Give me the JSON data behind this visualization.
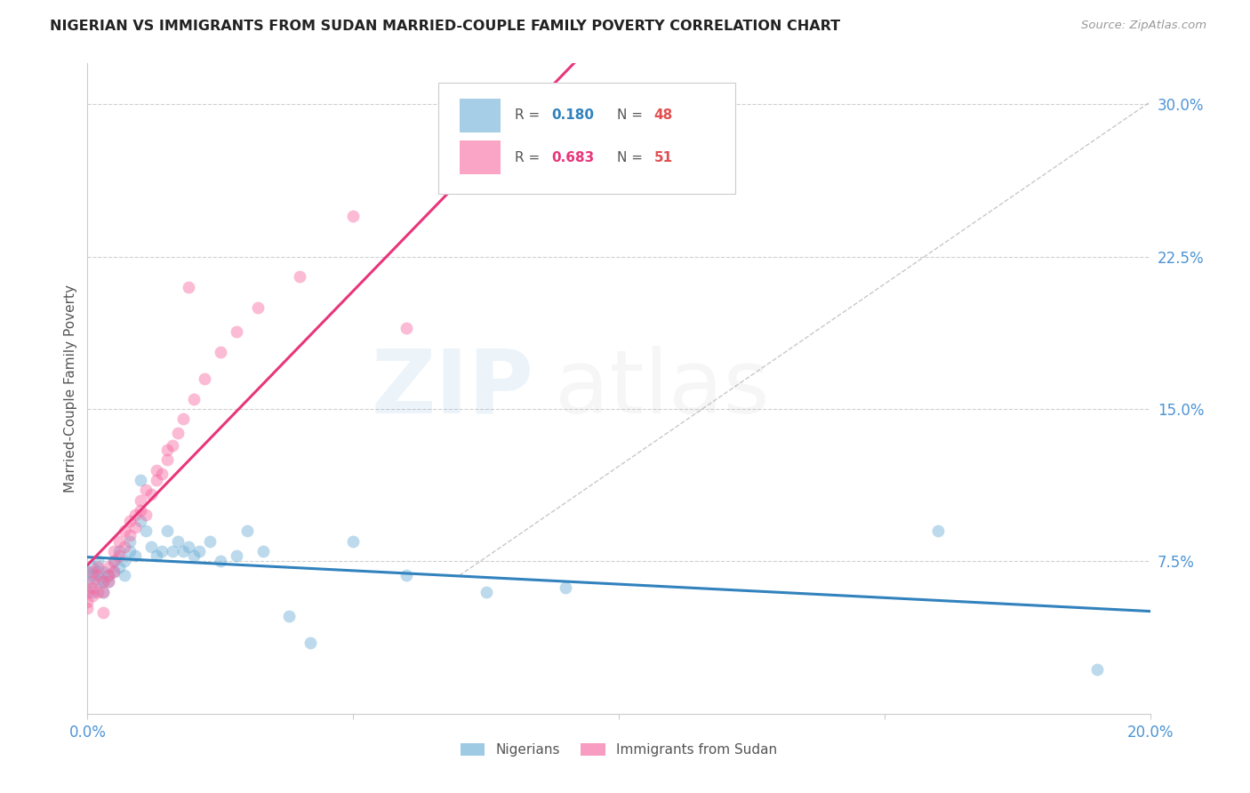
{
  "title": "NIGERIAN VS IMMIGRANTS FROM SUDAN MARRIED-COUPLE FAMILY POVERTY CORRELATION CHART",
  "source": "Source: ZipAtlas.com",
  "ylabel": "Married-Couple Family Poverty",
  "xlim": [
    0.0,
    0.2
  ],
  "ylim": [
    0.0,
    0.32
  ],
  "yticks": [
    0.075,
    0.15,
    0.225,
    0.3
  ],
  "ytick_labels": [
    "7.5%",
    "15.0%",
    "22.5%",
    "30.0%"
  ],
  "R_nigerian": 0.18,
  "N_nigerian": 48,
  "R_sudan": 0.683,
  "N_sudan": 51,
  "blue_color": "#6baed6",
  "pink_color": "#f768a1",
  "blue_line": "#3182bd",
  "pink_line": "#e8367a",
  "scatter_alpha": 0.45,
  "scatter_size": 100,
  "nigerian_x": [
    0.0,
    0.0,
    0.001,
    0.001,
    0.001,
    0.002,
    0.002,
    0.002,
    0.003,
    0.003,
    0.003,
    0.004,
    0.004,
    0.005,
    0.005,
    0.006,
    0.006,
    0.007,
    0.007,
    0.008,
    0.008,
    0.009,
    0.01,
    0.01,
    0.011,
    0.012,
    0.013,
    0.014,
    0.015,
    0.016,
    0.017,
    0.018,
    0.019,
    0.02,
    0.021,
    0.023,
    0.025,
    0.028,
    0.03,
    0.033,
    0.038,
    0.042,
    0.05,
    0.06,
    0.075,
    0.09,
    0.16,
    0.19
  ],
  "nigerian_y": [
    0.07,
    0.065,
    0.068,
    0.072,
    0.06,
    0.065,
    0.07,
    0.075,
    0.065,
    0.07,
    0.06,
    0.065,
    0.068,
    0.075,
    0.07,
    0.08,
    0.072,
    0.068,
    0.075,
    0.08,
    0.085,
    0.078,
    0.095,
    0.115,
    0.09,
    0.082,
    0.078,
    0.08,
    0.09,
    0.08,
    0.085,
    0.08,
    0.082,
    0.078,
    0.08,
    0.085,
    0.075,
    0.078,
    0.09,
    0.08,
    0.048,
    0.035,
    0.085,
    0.068,
    0.06,
    0.062,
    0.09,
    0.022
  ],
  "sudan_x": [
    0.0,
    0.0,
    0.0,
    0.001,
    0.001,
    0.001,
    0.001,
    0.002,
    0.002,
    0.002,
    0.003,
    0.003,
    0.003,
    0.004,
    0.004,
    0.004,
    0.005,
    0.005,
    0.005,
    0.006,
    0.006,
    0.007,
    0.007,
    0.008,
    0.008,
    0.009,
    0.009,
    0.01,
    0.01,
    0.011,
    0.011,
    0.012,
    0.013,
    0.013,
    0.014,
    0.015,
    0.015,
    0.016,
    0.017,
    0.018,
    0.019,
    0.02,
    0.022,
    0.025,
    0.028,
    0.032,
    0.04,
    0.05,
    0.06,
    0.08,
    0.095
  ],
  "sudan_y": [
    0.06,
    0.055,
    0.052,
    0.062,
    0.065,
    0.058,
    0.07,
    0.06,
    0.068,
    0.072,
    0.065,
    0.06,
    0.05,
    0.068,
    0.065,
    0.072,
    0.075,
    0.07,
    0.08,
    0.078,
    0.085,
    0.082,
    0.09,
    0.088,
    0.095,
    0.098,
    0.092,
    0.1,
    0.105,
    0.098,
    0.11,
    0.108,
    0.115,
    0.12,
    0.118,
    0.125,
    0.13,
    0.132,
    0.138,
    0.145,
    0.21,
    0.155,
    0.165,
    0.178,
    0.188,
    0.2,
    0.215,
    0.245,
    0.19,
    0.27,
    0.265
  ]
}
